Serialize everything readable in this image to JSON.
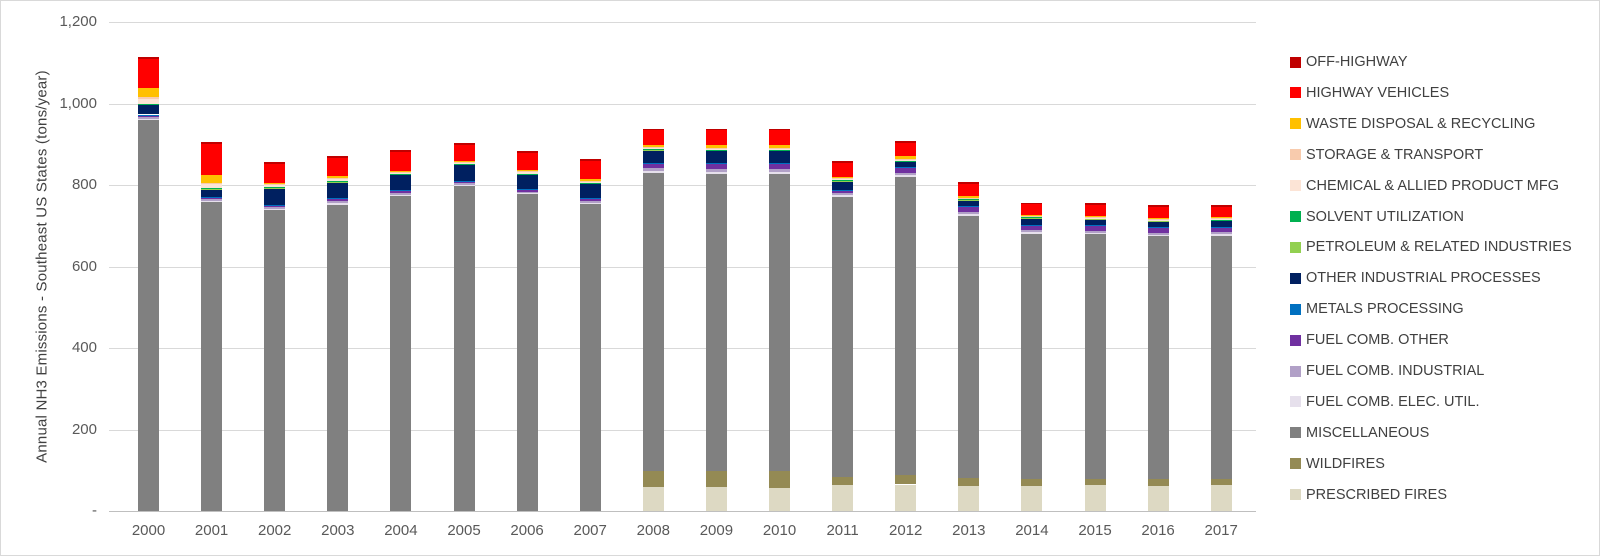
{
  "chart_data": {
    "type": "bar",
    "stacked": true,
    "title": "",
    "xlabel": "",
    "ylabel": "Annual NH3 Emissions - Southeast US States  (tons/year)",
    "ylim": [
      0,
      1200
    ],
    "grid": "horizontal-light-gray",
    "legend_position": "right",
    "legend_order_note": "legend lists top-of-stack first",
    "yticks": [
      {
        "value": 0,
        "label": "-"
      },
      {
        "value": 200,
        "label": "200"
      },
      {
        "value": 400,
        "label": "400"
      },
      {
        "value": 600,
        "label": "600"
      },
      {
        "value": 800,
        "label": "800"
      },
      {
        "value": 1000,
        "label": "1,000"
      },
      {
        "value": 1200,
        "label": "1,200"
      }
    ],
    "categories": [
      "2000",
      "2001",
      "2002",
      "2003",
      "2004",
      "2005",
      "2006",
      "2007",
      "2008",
      "2009",
      "2010",
      "2011",
      "2012",
      "2013",
      "2014",
      "2015",
      "2016",
      "2017"
    ],
    "series": [
      {
        "name": "PRESCRIBED FIRES",
        "color": "#DDD9C3",
        "values": [
          0,
          0,
          0,
          0,
          0,
          0,
          0,
          0,
          59,
          59,
          57,
          63,
          65,
          61,
          61,
          63,
          62,
          63
        ]
      },
      {
        "name": "WILDFIRES",
        "color": "#948A54",
        "values": [
          0,
          0,
          0,
          0,
          0,
          0,
          0,
          0,
          39,
          39,
          41,
          20,
          23,
          20,
          17,
          16,
          16,
          16
        ]
      },
      {
        "name": "MISCELLANEOUS",
        "color": "#808080",
        "values": [
          960,
          758,
          738,
          752,
          772,
          797,
          777,
          754,
          732,
          730,
          730,
          688,
          732,
          644,
          602,
          600,
          596,
          596
        ]
      },
      {
        "name": "FUEL COMB. ELEC. UTIL.",
        "color": "#E6E0EC",
        "values": [
          3,
          3,
          3,
          3,
          3,
          3,
          3,
          3,
          5,
          5,
          5,
          4,
          4,
          4,
          4,
          4,
          4,
          4
        ]
      },
      {
        "name": "FUEL COMB. INDUSTRIAL",
        "color": "#B1A0C7",
        "values": [
          5,
          4,
          5,
          5,
          5,
          5,
          4,
          4,
          7,
          7,
          7,
          5,
          6,
          4,
          5,
          5,
          5,
          5
        ]
      },
      {
        "name": "FUEL COMB. OTHER",
        "color": "#7030A0",
        "values": [
          3,
          3,
          4,
          5,
          5,
          4,
          4,
          4,
          10,
          11,
          11,
          6,
          12,
          13,
          12,
          11,
          11,
          11
        ]
      },
      {
        "name": "METALS PROCESSING",
        "color": "#0070C0",
        "values": [
          2,
          2,
          2,
          2,
          2,
          2,
          2,
          2,
          2,
          2,
          2,
          2,
          2,
          2,
          2,
          2,
          2,
          2
        ]
      },
      {
        "name": "OTHER INDUSTRIAL PROCESSES",
        "color": "#002060",
        "values": [
          24,
          20,
          40,
          40,
          38,
          39,
          36,
          36,
          32,
          32,
          32,
          22,
          14,
          15,
          16,
          15,
          15,
          15
        ]
      },
      {
        "name": "PETROLEUM & RELATED INDUSTRIES",
        "color": "#92D050",
        "values": [
          1,
          1,
          1,
          1,
          1,
          1,
          1,
          1,
          1,
          1,
          1,
          1,
          1,
          1,
          1,
          1,
          1,
          1
        ]
      },
      {
        "name": "SOLVENT UTILIZATION",
        "color": "#00B050",
        "values": [
          1,
          1,
          1,
          3,
          1,
          1,
          1,
          1,
          1,
          1,
          1,
          1,
          1,
          1,
          1,
          1,
          1,
          1
        ]
      },
      {
        "name": "CHEMICAL & ALLIED PRODUCT MFG",
        "color": "#FCE4D6",
        "values": [
          12,
          10,
          6,
          3,
          3,
          3,
          3,
          2,
          3,
          3,
          3,
          2,
          2,
          2,
          2,
          2,
          2,
          2
        ]
      },
      {
        "name": "STORAGE & TRANSPORT",
        "color": "#F8CBAD",
        "values": [
          4,
          4,
          2,
          2,
          3,
          3,
          3,
          2,
          2,
          2,
          2,
          2,
          2,
          2,
          2,
          2,
          2,
          2
        ]
      },
      {
        "name": "WASTE DISPOSAL & RECYCLING",
        "color": "#FFC000",
        "values": [
          22,
          18,
          3,
          6,
          2,
          2,
          4,
          6,
          5,
          5,
          5,
          4,
          7,
          3,
          2,
          3,
          3,
          3
        ]
      },
      {
        "name": "HIGHWAY VEHICLES",
        "color": "#FF0000",
        "values": [
          72,
          77,
          47,
          45,
          46,
          38,
          41,
          44,
          36,
          37,
          37,
          35,
          33,
          31,
          26,
          26,
          26,
          26
        ]
      },
      {
        "name": "OFF-HIGHWAY",
        "color": "#C00000",
        "values": [
          5,
          5,
          4,
          4,
          4,
          4,
          4,
          4,
          4,
          4,
          4,
          4,
          4,
          4,
          4,
          4,
          4,
          4
        ]
      }
    ]
  }
}
